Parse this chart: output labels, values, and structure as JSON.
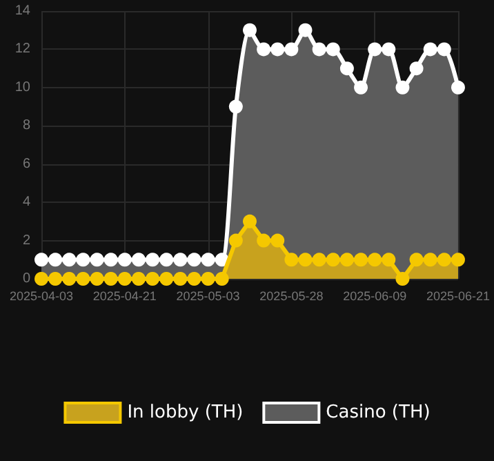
{
  "chart_data": {
    "type": "area",
    "categories": [
      "2025-04-03",
      null,
      null,
      null,
      null,
      null,
      "2025-04-21",
      null,
      null,
      null,
      null,
      null,
      "2025-05-03",
      null,
      null,
      null,
      null,
      null,
      "2025-05-28",
      null,
      null,
      null,
      null,
      null,
      "2025-06-09",
      null,
      null,
      null,
      null,
      null,
      "2025-06-21"
    ],
    "series": [
      {
        "name": "In lobby (TH)",
        "color": "#f5c800",
        "values": [
          0,
          0,
          0,
          0,
          0,
          0,
          0,
          0,
          0,
          0,
          0,
          0,
          0,
          0,
          2,
          3,
          2,
          2,
          1,
          1,
          1,
          1,
          1,
          1,
          1,
          1,
          0,
          1,
          1,
          1,
          1
        ]
      },
      {
        "name": "Casino (TH)",
        "color": "#ffffff",
        "values": [
          1,
          1,
          1,
          1,
          1,
          1,
          1,
          1,
          1,
          1,
          1,
          1,
          1,
          1,
          9,
          13,
          12,
          12,
          12,
          13,
          12,
          12,
          11,
          10,
          12,
          12,
          10,
          11,
          12,
          12,
          10
        ]
      }
    ],
    "ylim": [
      0,
      14
    ],
    "yticks": [
      0,
      2,
      4,
      6,
      8,
      10,
      12,
      14
    ],
    "grid": true,
    "legend": "bottom",
    "marker": "circle"
  }
}
